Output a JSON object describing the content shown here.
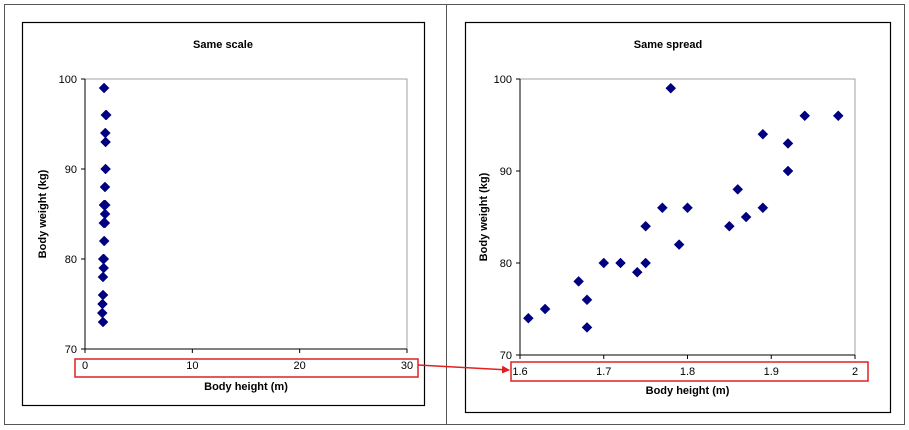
{
  "chart_data": [
    {
      "type": "scatter",
      "title": "Same scale",
      "xlabel": "Body height (m)",
      "ylabel": "Body weight (kg)",
      "xlim": [
        0,
        30
      ],
      "ylim": [
        70,
        100
      ],
      "xticks": [
        "0",
        "10",
        "20",
        "30"
      ],
      "yticks": [
        "70",
        "80",
        "90",
        "100"
      ],
      "grid": false,
      "marker": "diamond",
      "color": "#000080",
      "points": [
        {
          "x": 1.61,
          "y": 74
        },
        {
          "x": 1.63,
          "y": 75
        },
        {
          "x": 1.67,
          "y": 78
        },
        {
          "x": 1.68,
          "y": 76
        },
        {
          "x": 1.68,
          "y": 73
        },
        {
          "x": 1.7,
          "y": 80
        },
        {
          "x": 1.72,
          "y": 80
        },
        {
          "x": 1.74,
          "y": 79
        },
        {
          "x": 1.75,
          "y": 80
        },
        {
          "x": 1.75,
          "y": 84
        },
        {
          "x": 1.77,
          "y": 86
        },
        {
          "x": 1.78,
          "y": 99
        },
        {
          "x": 1.79,
          "y": 82
        },
        {
          "x": 1.8,
          "y": 86
        },
        {
          "x": 1.85,
          "y": 84
        },
        {
          "x": 1.86,
          "y": 88
        },
        {
          "x": 1.87,
          "y": 85
        },
        {
          "x": 1.89,
          "y": 94
        },
        {
          "x": 1.89,
          "y": 86
        },
        {
          "x": 1.92,
          "y": 93
        },
        {
          "x": 1.92,
          "y": 90
        },
        {
          "x": 1.94,
          "y": 96
        },
        {
          "x": 1.98,
          "y": 96
        }
      ]
    },
    {
      "type": "scatter",
      "title": "Same spread",
      "xlabel": "Body height (m)",
      "ylabel": "Body weight (kg)",
      "xlim": [
        1.6,
        2.0
      ],
      "ylim": [
        70,
        100
      ],
      "xticks": [
        "1.6",
        "1.7",
        "1.8",
        "1.9",
        "2"
      ],
      "yticks": [
        "70",
        "80",
        "90",
        "100"
      ],
      "grid": false,
      "marker": "diamond",
      "color": "#000080",
      "points": [
        {
          "x": 1.61,
          "y": 74
        },
        {
          "x": 1.63,
          "y": 75
        },
        {
          "x": 1.67,
          "y": 78
        },
        {
          "x": 1.68,
          "y": 76
        },
        {
          "x": 1.68,
          "y": 73
        },
        {
          "x": 1.7,
          "y": 80
        },
        {
          "x": 1.72,
          "y": 80
        },
        {
          "x": 1.74,
          "y": 79
        },
        {
          "x": 1.75,
          "y": 80
        },
        {
          "x": 1.75,
          "y": 84
        },
        {
          "x": 1.77,
          "y": 86
        },
        {
          "x": 1.78,
          "y": 99
        },
        {
          "x": 1.79,
          "y": 82
        },
        {
          "x": 1.8,
          "y": 86
        },
        {
          "x": 1.85,
          "y": 84
        },
        {
          "x": 1.86,
          "y": 88
        },
        {
          "x": 1.87,
          "y": 85
        },
        {
          "x": 1.89,
          "y": 94
        },
        {
          "x": 1.89,
          "y": 86
        },
        {
          "x": 1.92,
          "y": 93
        },
        {
          "x": 1.92,
          "y": 90
        },
        {
          "x": 1.94,
          "y": 96
        },
        {
          "x": 1.98,
          "y": 96
        }
      ]
    }
  ],
  "annotation": {
    "highlight_color": "#e02020",
    "arrow_from": "left x-axis ticks",
    "arrow_to": "right x-axis ticks"
  }
}
